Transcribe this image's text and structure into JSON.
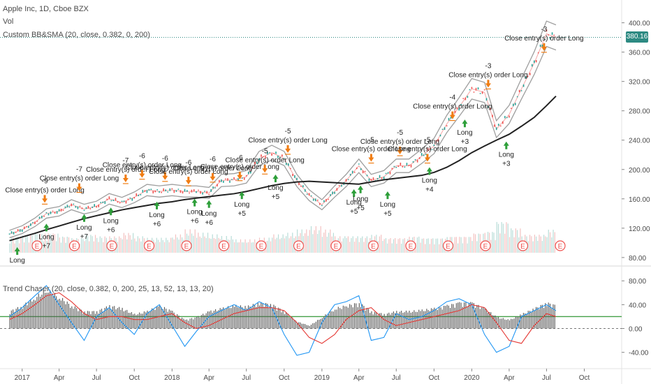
{
  "legend": {
    "title": "Apple Inc, 1D, Cboe BZX",
    "vol": "Vol",
    "indicator": "Custom BB&SMA (20, close, 0.382, 0, 200)",
    "oscillator": "Trend Chaser (20, close, 0.382, 0, 200, 25, 13, 52, 13, 13, 20)"
  },
  "last_price": "380.16",
  "colors": {
    "up": "#26a69a",
    "down": "#ef5350",
    "sma200": "#222222",
    "band": "#9e9e9e",
    "entry_arrow": "#2e9f3a",
    "exit_arrow": "#f07c12",
    "osc_blue": "#2196f3",
    "osc_red": "#e53935",
    "osc_green": "#43a047",
    "osc_hist": "#555555",
    "earnings": "#ef5350",
    "price_line": "#2d8a82"
  },
  "chart_data": [
    {
      "type": "line",
      "title": "Apple Inc, 1D, Cboe BZX",
      "x_labels": [
        "2017",
        "Apr",
        "Jul",
        "Oct",
        "2018",
        "Apr",
        "Jul",
        "Oct",
        "2019",
        "Apr",
        "Jul",
        "Oct",
        "2020",
        "Apr",
        "Jul",
        "Oct"
      ],
      "y_ticks": [
        "400.00",
        "360.00",
        "320.00",
        "280.00",
        "240.00",
        "200.00",
        "160.00",
        "120.00",
        "80.00"
      ],
      "ylim": [
        77,
        412
      ],
      "price": {
        "dates": [
          "2016-12-01",
          "2017-01-01",
          "2017-02-01",
          "2017-03-01",
          "2017-04-01",
          "2017-05-01",
          "2017-06-01",
          "2017-07-01",
          "2017-08-01",
          "2017-09-01",
          "2017-10-01",
          "2017-11-01",
          "2017-12-01",
          "2018-01-01",
          "2018-02-01",
          "2018-03-01",
          "2018-04-01",
          "2018-05-01",
          "2018-06-01",
          "2018-07-01",
          "2018-08-01",
          "2018-09-01",
          "2018-10-01",
          "2018-11-01",
          "2018-12-01",
          "2019-01-01",
          "2019-02-01",
          "2019-03-01",
          "2019-04-01",
          "2019-05-01",
          "2019-06-01",
          "2019-07-01",
          "2019-08-01",
          "2019-09-01",
          "2019-10-01",
          "2019-11-01",
          "2019-12-01",
          "2020-01-01",
          "2020-02-01",
          "2020-03-01",
          "2020-04-01",
          "2020-05-01",
          "2020-06-01",
          "2020-07-01",
          "2020-07-24"
        ],
        "values": [
          112,
          118,
          128,
          140,
          143,
          152,
          146,
          150,
          160,
          155,
          162,
          172,
          170,
          172,
          170,
          170,
          168,
          185,
          186,
          190,
          215,
          223,
          215,
          185,
          165,
          152,
          170,
          185,
          205,
          185,
          190,
          205,
          205,
          218,
          232,
          262,
          285,
          310,
          305,
          255,
          275,
          310,
          345,
          385,
          380
        ]
      },
      "sma200": [
        103,
        108,
        113,
        118,
        123,
        128,
        133,
        137,
        141,
        145,
        148,
        151,
        154,
        156,
        159,
        161,
        163,
        165,
        167,
        170,
        174,
        178,
        181,
        183,
        184,
        183,
        182,
        181,
        180,
        183,
        186,
        188,
        190,
        192,
        196,
        203,
        212,
        223,
        232,
        240,
        248,
        259,
        271,
        287,
        300
      ],
      "volume_relative": [
        0.5,
        0.55,
        0.6,
        0.6,
        0.5,
        0.45,
        0.55,
        0.5,
        0.5,
        0.6,
        0.5,
        0.45,
        0.45,
        0.55,
        0.7,
        0.6,
        0.55,
        0.5,
        0.4,
        0.4,
        0.45,
        0.55,
        0.6,
        0.7,
        0.8,
        0.7,
        0.5,
        0.5,
        0.5,
        0.55,
        0.45,
        0.45,
        0.5,
        0.45,
        0.45,
        0.5,
        0.5,
        0.6,
        0.65,
        0.95,
        0.75,
        0.55,
        0.55,
        0.7,
        0.6
      ],
      "earnings_markers": 15,
      "long_entries": [
        {
          "date": "2016-12-20",
          "price": 96,
          "label": "Long"
        },
        {
          "date": "2017-03-01",
          "price": 128,
          "label": "Long +7"
        },
        {
          "date": "2017-06-01",
          "price": 141,
          "label": "Long +7"
        },
        {
          "date": "2017-08-05",
          "price": 150,
          "label": "Long +6"
        },
        {
          "date": "2017-11-25",
          "price": 158,
          "label": "Long +6"
        },
        {
          "date": "2018-02-25",
          "price": 162,
          "label": "Long +6"
        },
        {
          "date": "2018-04-01",
          "price": 160,
          "label": "Long +6"
        },
        {
          "date": "2018-06-20",
          "price": 172,
          "label": "Long +5"
        },
        {
          "date": "2018-09-10",
          "price": 195,
          "label": "Long +5"
        },
        {
          "date": "2019-03-20",
          "price": 175,
          "label": "Long +5"
        },
        {
          "date": "2019-04-05",
          "price": 180,
          "label": "Long +5"
        },
        {
          "date": "2019-06-10",
          "price": 172,
          "label": "Long +5"
        },
        {
          "date": "2019-09-20",
          "price": 205,
          "label": "Long +4"
        },
        {
          "date": "2019-12-15",
          "price": 270,
          "label": "Long +3"
        },
        {
          "date": "2020-03-25",
          "price": 240,
          "label": "Long +3"
        }
      ],
      "exits": [
        {
          "date": "2017-02-25",
          "price": 168,
          "label": "Close entry(s) order Long",
          "qty": "-9"
        },
        {
          "date": "2017-05-20",
          "price": 184,
          "label": "Close entry(s) order Long",
          "qty": "-7"
        },
        {
          "date": "2017-09-10",
          "price": 196,
          "label": "Close entry(s) order Long",
          "qty": "-7"
        },
        {
          "date": "2017-10-20",
          "price": 202,
          "label": "Close entry(s) order Long",
          "qty": "-6"
        },
        {
          "date": "2017-12-15",
          "price": 199,
          "label": "Close entry(s) order Long",
          "qty": "-6"
        },
        {
          "date": "2018-02-10",
          "price": 193,
          "label": "Close entry(s) order Long",
          "qty": "-6"
        },
        {
          "date": "2018-04-10",
          "price": 198,
          "label": "Close entry(s) order Long",
          "qty": "-6"
        },
        {
          "date": "2018-06-15",
          "price": 200,
          "label": "Close entry(s) order Long",
          "qty": "-6"
        },
        {
          "date": "2018-08-15",
          "price": 209,
          "label": "Close entry(s) order Long",
          "qty": "-5"
        },
        {
          "date": "2018-10-10",
          "price": 236,
          "label": "Close entry(s) order Long",
          "qty": "-5"
        },
        {
          "date": "2019-05-01",
          "price": 224,
          "label": "Close entry(s) order Long",
          "qty": "-5"
        },
        {
          "date": "2019-07-10",
          "price": 234,
          "label": "Close entry(s) order Long",
          "qty": "-5"
        },
        {
          "date": "2019-09-15",
          "price": 224,
          "label": "Close entry(s) order Long",
          "qty": "-5"
        },
        {
          "date": "2019-11-15",
          "price": 282,
          "label": "Close entry(s) order Long",
          "qty": "-4"
        },
        {
          "date": "2020-02-10",
          "price": 325,
          "label": "Close entry(s) order Long",
          "qty": "-3"
        },
        {
          "date": "2020-06-25",
          "price": 375,
          "label": "Close entry(s) order Long",
          "qty": "-3"
        }
      ]
    },
    {
      "type": "line",
      "title": "Trend Chaser (20, close, 0.382, 0, 200, 25, 13, 52, 13, 13, 20)",
      "y_ticks": [
        "80.00",
        "40.00",
        "0.00",
        "-40.00"
      ],
      "ylim": [
        -58,
        92
      ],
      "zero_value": 0,
      "green_level": 20,
      "series": [
        {
          "color": "osc_blue",
          "values": [
            20,
            35,
            55,
            72,
            40,
            10,
            -20,
            20,
            35,
            10,
            -10,
            25,
            40,
            5,
            -30,
            -5,
            20,
            30,
            40,
            30,
            45,
            35,
            -10,
            -45,
            -40,
            10,
            40,
            45,
            55,
            -20,
            -15,
            25,
            15,
            20,
            30,
            45,
            50,
            40,
            -10,
            -40,
            -30,
            20,
            30,
            40,
            30
          ]
        },
        {
          "color": "osc_red",
          "values": [
            15,
            25,
            40,
            55,
            60,
            45,
            25,
            15,
            20,
            20,
            15,
            15,
            20,
            25,
            10,
            0,
            5,
            15,
            25,
            30,
            35,
            35,
            30,
            10,
            -15,
            -25,
            -10,
            15,
            30,
            35,
            15,
            5,
            10,
            15,
            20,
            25,
            30,
            40,
            35,
            10,
            -20,
            -25,
            5,
            25,
            20
          ]
        },
        {
          "color": "osc_hist",
          "values": [
            30,
            40,
            55,
            68,
            55,
            40,
            30,
            30,
            40,
            35,
            25,
            30,
            40,
            30,
            15,
            20,
            30,
            35,
            40,
            38,
            45,
            42,
            30,
            12,
            5,
            20,
            35,
            40,
            45,
            30,
            25,
            30,
            30,
            32,
            35,
            40,
            45,
            45,
            35,
            20,
            15,
            25,
            35,
            45,
            40
          ]
        }
      ]
    }
  ]
}
